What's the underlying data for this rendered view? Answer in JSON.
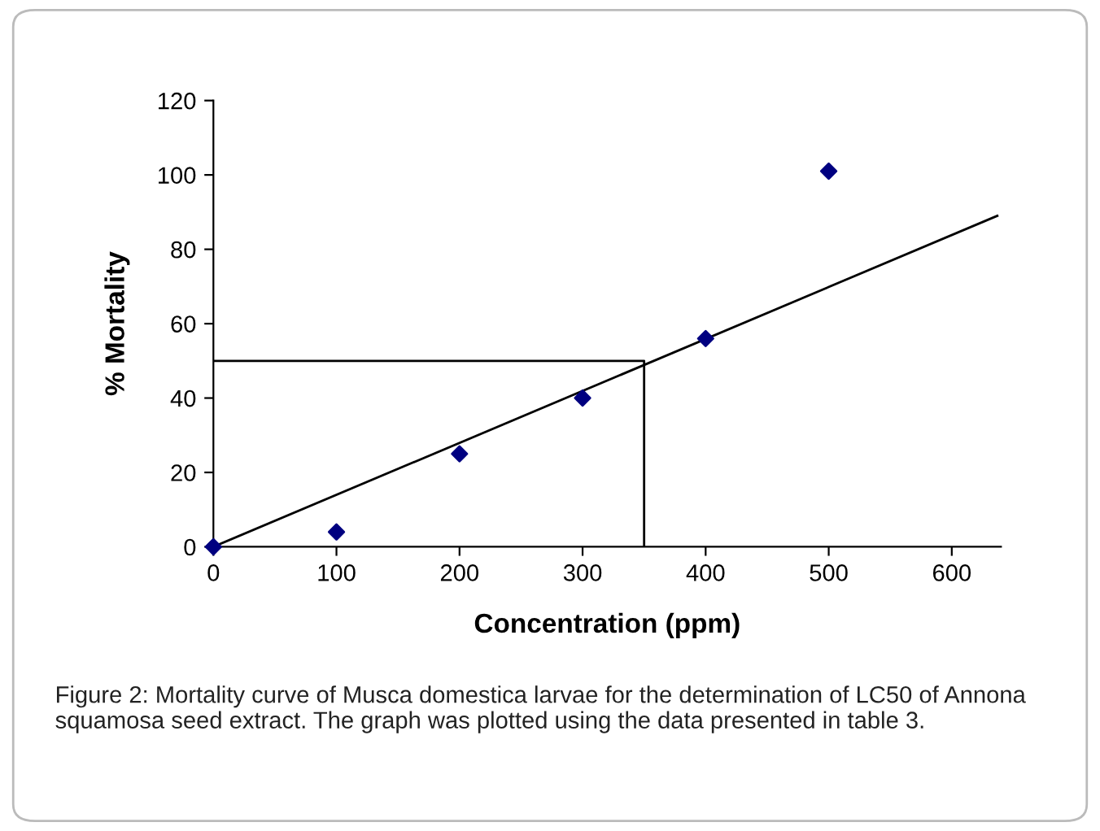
{
  "chart_data": {
    "type": "scatter",
    "xlabel": "Concentration (ppm)",
    "ylabel": "% Mortality",
    "xlim": [
      0,
      640
    ],
    "xticks": [
      0,
      100,
      200,
      300,
      400,
      500,
      600
    ],
    "ylim": [
      0,
      120
    ],
    "yticks": [
      0,
      20,
      40,
      60,
      80,
      100,
      120
    ],
    "grid": false,
    "legend": false,
    "series": [
      {
        "marker": "diamond",
        "color": "#000080",
        "x": [
          0,
          100,
          200,
          300,
          400,
          500
        ],
        "values": [
          0,
          4,
          25,
          40,
          56,
          101
        ]
      },
      {
        "type": "line",
        "marker": "none",
        "color": "#000000",
        "x": [
          0,
          637
        ],
        "values": [
          0,
          89
        ]
      },
      {
        "type": "line",
        "marker": "none",
        "color": "#000000",
        "x": [
          0,
          350,
          350
        ],
        "values": [
          50,
          50,
          0
        ]
      }
    ],
    "annotations": [
      "Figure 2: Mortality curve of Musca domestica larvae for the determination of LC50 of Annona squamosa seed extract. The graph was plotted using the data presented in table 3."
    ]
  }
}
